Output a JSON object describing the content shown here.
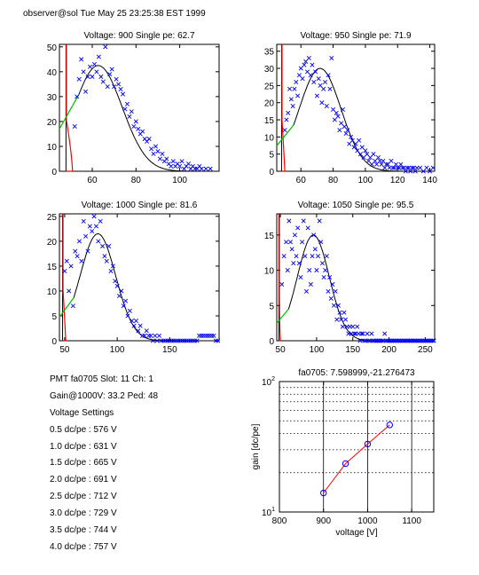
{
  "header": "observer@sol  Tue May 25 23:25:38 EST 1999",
  "info": {
    "lines": [
      "PMT fa0705 Slot: 11 Ch: 1",
      "Gain@1000V: 33.2 Ped: 48",
      "Voltage Settings",
      "0.5 dc/pe : 576 V",
      "1.0 dc/pe : 631 V",
      "1.5 dc/pe : 665 V",
      "2.0 dc/pe : 691 V",
      "2.5 dc/pe : 712 V",
      "3.0 dc/pe : 729 V",
      "3.5 dc/pe : 744 V",
      "4.0 dc/pe : 757 V"
    ]
  },
  "colors": {
    "points": "#0000ff",
    "fit": "#000000",
    "pedestal": "#ff0000",
    "rise": "#00bb00",
    "gain_line": "#ff0000"
  },
  "chart_data": [
    {
      "type": "scatter",
      "title": "Voltage: 900 Single pe: 62.7",
      "xlim": [
        45,
        118
      ],
      "ylim": [
        0,
        51
      ],
      "xticks": [
        60,
        80,
        100
      ],
      "yticks": [
        0,
        10,
        20,
        30,
        40,
        50
      ],
      "pedestal_x": 48,
      "cut_x": 51,
      "fit": {
        "amp": 42.5,
        "mu": 62.7,
        "sigma": 11
      },
      "points": [
        [
          52,
          18
        ],
        [
          53,
          30
        ],
        [
          54,
          37
        ],
        [
          55,
          45
        ],
        [
          56,
          40
        ],
        [
          57,
          32
        ],
        [
          58,
          38
        ],
        [
          59,
          42
        ],
        [
          60,
          38
        ],
        [
          61,
          43
        ],
        [
          62,
          40
        ],
        [
          63,
          46
        ],
        [
          64,
          38
        ],
        [
          65,
          36
        ],
        [
          66,
          50
        ],
        [
          67,
          34
        ],
        [
          68,
          39
        ],
        [
          69,
          41
        ],
        [
          70,
          34
        ],
        [
          71,
          37
        ],
        [
          72,
          35
        ],
        [
          73,
          33
        ],
        [
          74,
          31
        ],
        [
          75,
          25
        ],
        [
          76,
          27
        ],
        [
          77,
          22
        ],
        [
          78,
          24
        ],
        [
          79,
          18
        ],
        [
          80,
          20
        ],
        [
          81,
          17
        ],
        [
          82,
          15
        ],
        [
          83,
          16
        ],
        [
          84,
          13
        ],
        [
          85,
          12
        ],
        [
          86,
          13
        ],
        [
          87,
          9
        ],
        [
          88,
          7
        ],
        [
          89,
          10
        ],
        [
          90,
          8
        ],
        [
          91,
          5
        ],
        [
          92,
          7
        ],
        [
          93,
          4
        ],
        [
          94,
          5
        ],
        [
          95,
          3
        ],
        [
          96,
          2
        ],
        [
          97,
          4
        ],
        [
          98,
          2
        ],
        [
          99,
          3
        ],
        [
          100,
          2
        ],
        [
          101,
          4
        ],
        [
          102,
          1
        ],
        [
          103,
          2
        ],
        [
          104,
          3
        ],
        [
          105,
          1
        ],
        [
          106,
          2
        ],
        [
          107,
          1
        ],
        [
          108,
          1
        ],
        [
          109,
          2
        ],
        [
          110,
          1
        ],
        [
          112,
          1
        ],
        [
          114,
          1
        ]
      ]
    },
    {
      "type": "scatter",
      "title": "Voltage: 950 Single pe: 71.9",
      "xlim": [
        45,
        143
      ],
      "ylim": [
        0,
        37
      ],
      "xticks": [
        60,
        80,
        100,
        120,
        140
      ],
      "yticks": [
        0,
        5,
        10,
        15,
        20,
        25,
        30,
        35
      ],
      "pedestal_x": 48,
      "cut_x": 50,
      "fit": {
        "amp": 30,
        "mu": 71.9,
        "sigma": 13
      },
      "points": [
        [
          50,
          12
        ],
        [
          51,
          15
        ],
        [
          52,
          17
        ],
        [
          53,
          24
        ],
        [
          54,
          21
        ],
        [
          55,
          19
        ],
        [
          56,
          24
        ],
        [
          57,
          26
        ],
        [
          58,
          22
        ],
        [
          59,
          28
        ],
        [
          60,
          30
        ],
        [
          61,
          27
        ],
        [
          62,
          31
        ],
        [
          63,
          32
        ],
        [
          64,
          29
        ],
        [
          65,
          33
        ],
        [
          66,
          28
        ],
        [
          67,
          31
        ],
        [
          68,
          26
        ],
        [
          69,
          29
        ],
        [
          70,
          22
        ],
        [
          71,
          27
        ],
        [
          72,
          25
        ],
        [
          73,
          20
        ],
        [
          74,
          24
        ],
        [
          75,
          26
        ],
        [
          76,
          19
        ],
        [
          77,
          28
        ],
        [
          78,
          24
        ],
        [
          79,
          33
        ],
        [
          80,
          18
        ],
        [
          81,
          15
        ],
        [
          82,
          17
        ],
        [
          83,
          16
        ],
        [
          84,
          12
        ],
        [
          85,
          14
        ],
        [
          86,
          18
        ],
        [
          87,
          13
        ],
        [
          88,
          11
        ],
        [
          89,
          12
        ],
        [
          90,
          8
        ],
        [
          91,
          10
        ],
        [
          92,
          9
        ],
        [
          93,
          7
        ],
        [
          94,
          8
        ],
        [
          95,
          6
        ],
        [
          96,
          9
        ],
        [
          97,
          5
        ],
        [
          98,
          7
        ],
        [
          99,
          4
        ],
        [
          100,
          6
        ],
        [
          101,
          5
        ],
        [
          102,
          3
        ],
        [
          103,
          4
        ],
        [
          104,
          2
        ],
        [
          105,
          5
        ],
        [
          106,
          3
        ],
        [
          107,
          2
        ],
        [
          108,
          4
        ],
        [
          109,
          3
        ],
        [
          110,
          2
        ],
        [
          111,
          3
        ],
        [
          112,
          1
        ],
        [
          113,
          2
        ],
        [
          114,
          2
        ],
        [
          115,
          1
        ],
        [
          116,
          3
        ],
        [
          117,
          1
        ],
        [
          118,
          1
        ],
        [
          119,
          2
        ],
        [
          120,
          1
        ],
        [
          121,
          1
        ],
        [
          122,
          2
        ],
        [
          123,
          1
        ],
        [
          124,
          1
        ],
        [
          125,
          0
        ],
        [
          126,
          1
        ],
        [
          127,
          1
        ],
        [
          128,
          0
        ],
        [
          129,
          1
        ],
        [
          130,
          1
        ],
        [
          131,
          0
        ],
        [
          132,
          1
        ],
        [
          134,
          1
        ],
        [
          136,
          0
        ],
        [
          138,
          1
        ],
        [
          140,
          0
        ],
        [
          142,
          1
        ]
      ]
    },
    {
      "type": "scatter",
      "title": "Voltage: 1000 Single pe: 81.6",
      "xlim": [
        45,
        197
      ],
      "ylim": [
        0,
        25.5
      ],
      "xticks": [
        50,
        100,
        150
      ],
      "yticks": [
        0,
        5,
        10,
        15,
        20,
        25
      ],
      "pedestal_x": 48,
      "cut_x": 51,
      "fit": {
        "amp": 21.5,
        "mu": 81.6,
        "sigma": 17
      },
      "points": [
        [
          50,
          14
        ],
        [
          52,
          16
        ],
        [
          54,
          10
        ],
        [
          56,
          15
        ],
        [
          58,
          7
        ],
        [
          60,
          18
        ],
        [
          62,
          17
        ],
        [
          64,
          20
        ],
        [
          66,
          16
        ],
        [
          68,
          24
        ],
        [
          70,
          21
        ],
        [
          72,
          18
        ],
        [
          74,
          23
        ],
        [
          76,
          22
        ],
        [
          78,
          25
        ],
        [
          80,
          23
        ],
        [
          82,
          20
        ],
        [
          84,
          24
        ],
        [
          86,
          19
        ],
        [
          88,
          17
        ],
        [
          90,
          16
        ],
        [
          92,
          19
        ],
        [
          94,
          14
        ],
        [
          96,
          15
        ],
        [
          98,
          12
        ],
        [
          100,
          11
        ],
        [
          102,
          9
        ],
        [
          104,
          10
        ],
        [
          106,
          7
        ],
        [
          108,
          8
        ],
        [
          110,
          5
        ],
        [
          112,
          6
        ],
        [
          114,
          4
        ],
        [
          116,
          3
        ],
        [
          118,
          4
        ],
        [
          120,
          2
        ],
        [
          122,
          3
        ],
        [
          124,
          1
        ],
        [
          126,
          1
        ],
        [
          128,
          2
        ],
        [
          130,
          1
        ],
        [
          132,
          1
        ],
        [
          134,
          0
        ],
        [
          136,
          1
        ],
        [
          138,
          0
        ],
        [
          140,
          1
        ],
        [
          142,
          0
        ],
        [
          144,
          0
        ],
        [
          146,
          0
        ],
        [
          148,
          0
        ],
        [
          150,
          0
        ],
        [
          152,
          0
        ],
        [
          154,
          0
        ],
        [
          156,
          0
        ],
        [
          158,
          0
        ],
        [
          160,
          0
        ],
        [
          162,
          0
        ],
        [
          164,
          0
        ],
        [
          166,
          0
        ],
        [
          168,
          0
        ],
        [
          170,
          0
        ],
        [
          172,
          0
        ],
        [
          174,
          0
        ],
        [
          176,
          0
        ],
        [
          178,
          1
        ],
        [
          180,
          1
        ],
        [
          182,
          1
        ],
        [
          184,
          1
        ],
        [
          186,
          1
        ],
        [
          188,
          1
        ],
        [
          190,
          1
        ],
        [
          192,
          1
        ],
        [
          194,
          0
        ],
        [
          196,
          0
        ]
      ]
    },
    {
      "type": "scatter",
      "title": "Voltage: 1050 Single pe: 95.5",
      "xlim": [
        45,
        263
      ],
      "ylim": [
        0,
        18
      ],
      "xticks": [
        50,
        100,
        150,
        200,
        250
      ],
      "yticks": [
        0,
        5,
        10,
        15
      ],
      "pedestal_x": 48,
      "cut_x": 50,
      "fit": {
        "amp": 15,
        "mu": 95.5,
        "sigma": 22
      },
      "points": [
        [
          52,
          8
        ],
        [
          55,
          12
        ],
        [
          58,
          14
        ],
        [
          60,
          10
        ],
        [
          62,
          17
        ],
        [
          64,
          14
        ],
        [
          66,
          13
        ],
        [
          68,
          11
        ],
        [
          70,
          15
        ],
        [
          72,
          12
        ],
        [
          74,
          16
        ],
        [
          76,
          11
        ],
        [
          78,
          9
        ],
        [
          80,
          14
        ],
        [
          82,
          17
        ],
        [
          84,
          12
        ],
        [
          86,
          7
        ],
        [
          88,
          16
        ],
        [
          90,
          10
        ],
        [
          92,
          8
        ],
        [
          94,
          12
        ],
        [
          96,
          15
        ],
        [
          98,
          13
        ],
        [
          100,
          10
        ],
        [
          102,
          12
        ],
        [
          104,
          17
        ],
        [
          106,
          14
        ],
        [
          108,
          11
        ],
        [
          110,
          9
        ],
        [
          112,
          10
        ],
        [
          114,
          12
        ],
        [
          116,
          7
        ],
        [
          118,
          9
        ],
        [
          120,
          6
        ],
        [
          122,
          8
        ],
        [
          124,
          5
        ],
        [
          126,
          7
        ],
        [
          128,
          3
        ],
        [
          130,
          5
        ],
        [
          132,
          4
        ],
        [
          134,
          3
        ],
        [
          136,
          2
        ],
        [
          138,
          4
        ],
        [
          140,
          3
        ],
        [
          142,
          2
        ],
        [
          144,
          1
        ],
        [
          146,
          2
        ],
        [
          148,
          1
        ],
        [
          150,
          2
        ],
        [
          152,
          1
        ],
        [
          154,
          1
        ],
        [
          156,
          2
        ],
        [
          158,
          1
        ],
        [
          160,
          0
        ],
        [
          162,
          1
        ],
        [
          164,
          1
        ],
        [
          166,
          0
        ],
        [
          168,
          0
        ],
        [
          170,
          1
        ],
        [
          172,
          0
        ],
        [
          174,
          0
        ],
        [
          176,
          1
        ],
        [
          178,
          0
        ],
        [
          180,
          0
        ],
        [
          182,
          0
        ],
        [
          184,
          0
        ],
        [
          186,
          0
        ],
        [
          188,
          0
        ],
        [
          190,
          0
        ],
        [
          192,
          0
        ],
        [
          194,
          1
        ],
        [
          196,
          0
        ],
        [
          198,
          0
        ],
        [
          200,
          0
        ],
        [
          202,
          0
        ],
        [
          204,
          0
        ],
        [
          206,
          0
        ],
        [
          208,
          0
        ],
        [
          210,
          0
        ],
        [
          212,
          0
        ],
        [
          214,
          0
        ],
        [
          216,
          0
        ],
        [
          218,
          0
        ],
        [
          220,
          0
        ],
        [
          222,
          0
        ],
        [
          224,
          0
        ],
        [
          226,
          0
        ],
        [
          228,
          0
        ],
        [
          230,
          0
        ],
        [
          232,
          0
        ],
        [
          234,
          0
        ],
        [
          236,
          0
        ],
        [
          238,
          0
        ],
        [
          240,
          0
        ],
        [
          242,
          0
        ],
        [
          244,
          0
        ],
        [
          246,
          0
        ],
        [
          248,
          0
        ],
        [
          250,
          0
        ],
        [
          252,
          0
        ],
        [
          254,
          0
        ],
        [
          256,
          0
        ],
        [
          258,
          0
        ],
        [
          260,
          0
        ],
        [
          262,
          0
        ]
      ]
    },
    {
      "type": "line",
      "scale": "log-y",
      "title": "fa0705: 7.598999,-21.276473",
      "xlabel": "voltage [V]",
      "ylabel": "gain [dc/pe]",
      "xlim": [
        800,
        1150
      ],
      "ylim": [
        10,
        100
      ],
      "xticks": [
        800,
        900,
        1000,
        1100
      ],
      "yticks": [
        {
          "value": 10,
          "label": "10",
          "sup": "1"
        },
        {
          "value": 100,
          "label": "10",
          "sup": "2"
        }
      ],
      "grid": true,
      "x": [
        900,
        950,
        1000,
        1050
      ],
      "y": [
        14.0,
        23.5,
        33.2,
        46.5
      ]
    }
  ]
}
